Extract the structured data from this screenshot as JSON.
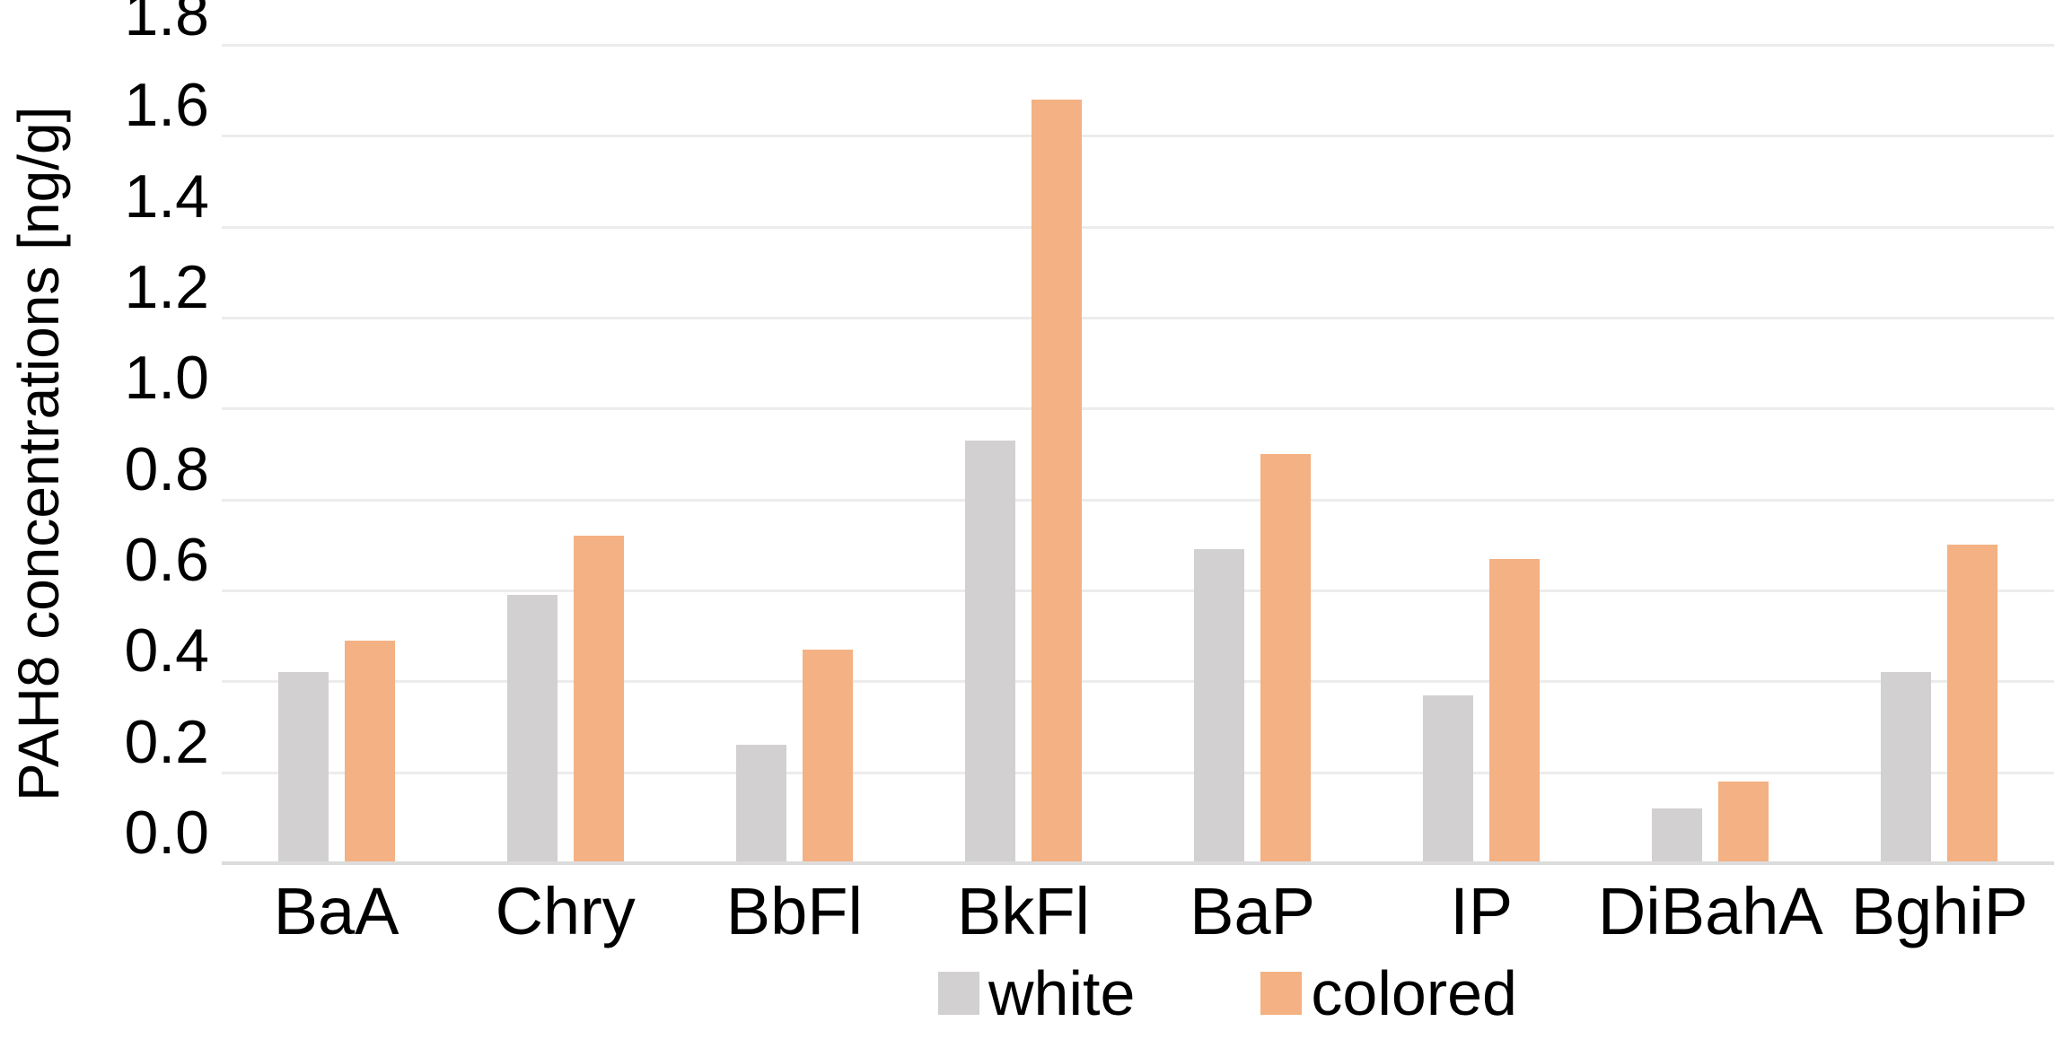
{
  "chart_data": {
    "type": "bar",
    "title": "",
    "ylabel": "PAH8 concentrations [ng/g]",
    "xlabel": "",
    "categories": [
      "BaA",
      "Chry",
      "BbFl",
      "BkFl",
      "BaP",
      "IP",
      "DiBahA",
      "BghiP"
    ],
    "series": [
      {
        "name": "white",
        "color": "#D2D0D0",
        "values": [
          0.42,
          0.59,
          0.26,
          0.93,
          0.69,
          0.37,
          0.12,
          0.42
        ]
      },
      {
        "name": "colored",
        "color": "#F4B183",
        "values": [
          0.49,
          0.72,
          0.47,
          1.68,
          0.9,
          0.67,
          0.18,
          0.7
        ]
      }
    ],
    "ylim": [
      0,
      1.8
    ],
    "ytick_step": 0.2,
    "yticks": [
      "0.0",
      "0.2",
      "0.4",
      "0.6",
      "0.8",
      "1.0",
      "1.2",
      "1.4",
      "1.6",
      "1.8"
    ],
    "grid": "horizontal",
    "legend_position": "bottom",
    "background_color": "#FFFFFF",
    "gridline_color": "#ECECEC",
    "baseline_color": "#DCDCDC",
    "text_color": "#000000"
  }
}
